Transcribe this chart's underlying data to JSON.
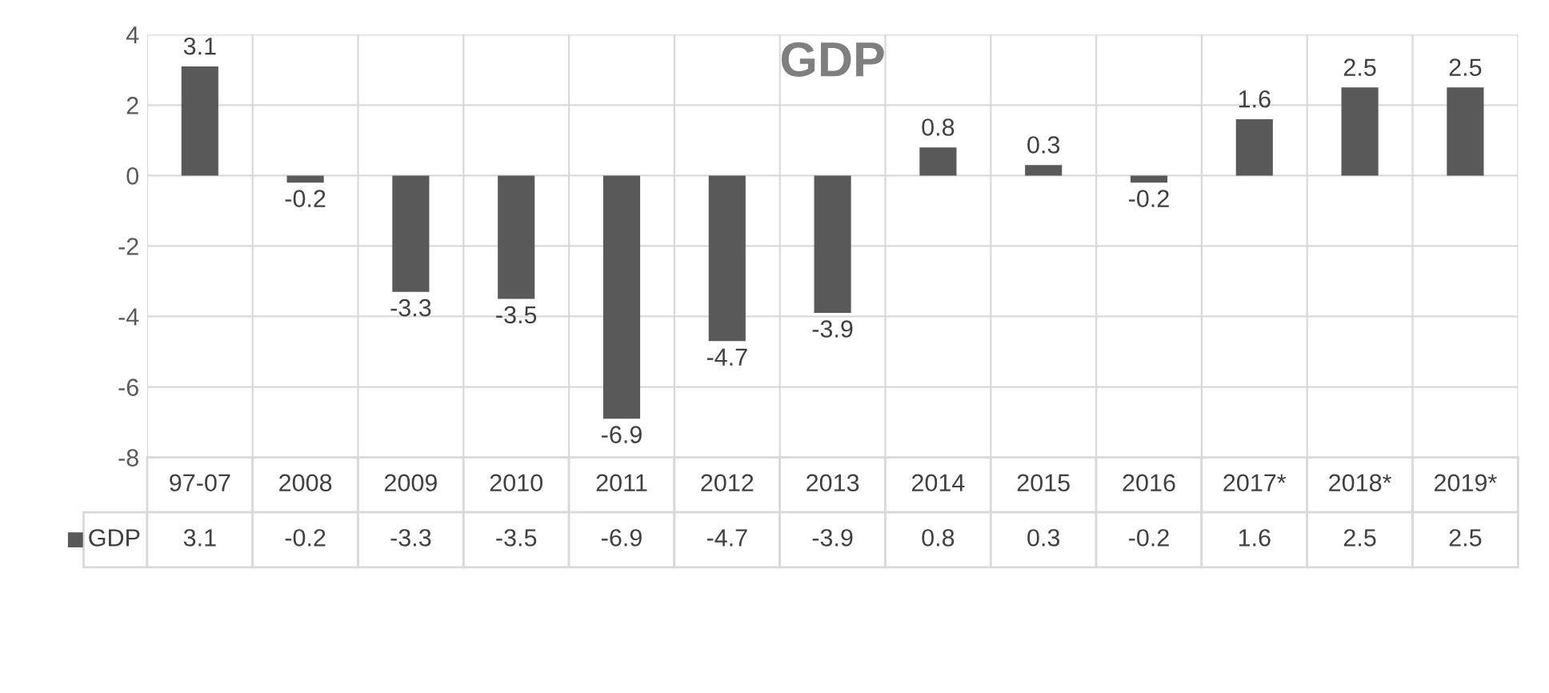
{
  "chart_data": {
    "type": "bar",
    "title": "GDP",
    "categories": [
      "97-07",
      "2008",
      "2009",
      "2010",
      "2011",
      "2012",
      "2013",
      "2014",
      "2015",
      "2016",
      "2017*",
      "2018*",
      "2019*"
    ],
    "series": [
      {
        "name": "GDP",
        "color": "#595959",
        "values": [
          3.1,
          -0.2,
          -3.3,
          -3.5,
          -6.9,
          -4.7,
          -3.9,
          0.8,
          0.3,
          -0.2,
          1.6,
          2.5,
          2.5
        ]
      }
    ],
    "ylim": [
      -8,
      4
    ],
    "yticks": [
      -8,
      -6,
      -4,
      -2,
      0,
      2,
      4
    ],
    "grid": true,
    "data_labels": true,
    "legend": "bottom",
    "annotations": [
      {
        "text": "3.1",
        "x": "97-07",
        "y": 3.1
      },
      {
        "text": "-0.2",
        "x": "2008",
        "y": -0.2
      },
      {
        "text": "-3.3",
        "x": "2009",
        "y": -3.3
      },
      {
        "text": "-3.5",
        "x": "2010",
        "y": -3.5
      },
      {
        "text": "-6.9",
        "x": "2011",
        "y": -6.9
      },
      {
        "text": "-4.7",
        "x": "2012",
        "y": -4.7
      },
      {
        "text": "-3.9",
        "x": "2013",
        "y": -3.9
      },
      {
        "text": "0.8",
        "x": "2014",
        "y": 0.8
      },
      {
        "text": "0.3",
        "x": "2015",
        "y": 0.3
      },
      {
        "text": "-0.2",
        "x": "2016",
        "y": -0.2
      },
      {
        "text": "1.6",
        "x": "2017*",
        "y": 1.6
      },
      {
        "text": "2.5",
        "x": "2018*",
        "y": 2.5
      },
      {
        "text": "2.5",
        "x": "2019*",
        "y": 2.5
      }
    ]
  }
}
